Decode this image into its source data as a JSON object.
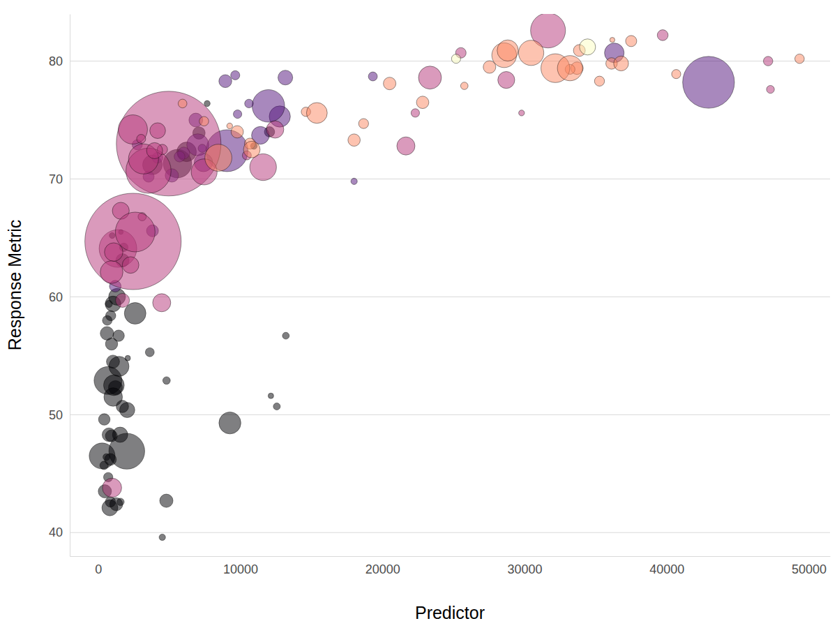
{
  "chart_data": {
    "type": "scatter",
    "marker": "bubble",
    "x_label": "Predictor",
    "y_label": "Response Metric",
    "xlim": [
      -2000,
      51500
    ],
    "ylim": [
      38,
      84
    ],
    "xticks": [
      0,
      10000,
      20000,
      30000,
      40000,
      50000
    ],
    "yticks": [
      40,
      50,
      60,
      70,
      80
    ],
    "grid": true,
    "series": [
      {
        "color": "#000004",
        "x": [
          6223,
          4797,
          1441,
          12570,
          1217,
          430,
          2042,
          706,
          1704,
          986,
          278,
          3633,
          1545,
          2082,
          5581,
          12154,
          641,
          691,
          13206,
          753,
          1328,
          943,
          579,
          1463,
          1569,
          415,
          12057,
          1045,
          759,
          1043,
          1803,
          10957,
          3820,
          824,
          4811,
          620,
          2014,
          7670,
          863,
          1598,
          1712,
          863,
          926,
          9270,
          2602,
          4513,
          1107,
          883,
          7093,
          1056,
          1271,
          470
        ],
        "values": [
          72.3,
          42.7,
          56.7,
          50.7,
          52.3,
          49.6,
          50.4,
          44.7,
          50.7,
          65.2,
          46.5,
          55.3,
          48.3,
          54.8,
          71.3,
          51.6,
          58.0,
          52.9,
          56.7,
          59.4,
          60.0,
          56.0,
          46.4,
          54.1,
          42.6,
          45.7,
          74.0,
          59.4,
          48.3,
          54.5,
          64.2,
          72.8,
          71.2,
          42.1,
          52.9,
          56.9,
          46.9,
          76.4,
          46.2,
          65.5,
          63.1,
          42.6,
          48.2,
          49.3,
          58.6,
          39.6,
          52.5,
          58.4,
          73.9,
          51.5,
          42.4,
          43.5
        ],
        "size": [
          33.3,
          12.4,
          8.1,
          1.6,
          14.3,
          8.4,
          17.7,
          4.4,
          10.2,
          0.7,
          64.6,
          3.8,
          18.0,
          0.5,
          80.3,
          0.55,
          4.9,
          76.5,
          1.45,
          1.7,
          22.9,
          9.9,
          1.5,
          35.6,
          2.0,
          3.2,
          6.0,
          19.2,
          13.3,
          12.0,
          3.3,
          1.25,
          33.8,
          20.0,
          2.1,
          12.9,
          135,
          0.8,
          8.9,
          0.2,
          12.3,
          6.1,
          9.1,
          44.0,
          42.3,
          1.1,
          38.1,
          5.7,
          10.3,
          29.2,
          11.7,
          12.3
        ]
      },
      {
        "color": "#51127C",
        "x": [
          12779,
          3822,
          9066,
          36319,
          13172,
          7007,
          9645,
          8948,
          6025,
          6873,
          5728,
          5186,
          1202,
          3548,
          7321,
          11978,
          2749,
          9809,
          4173,
          7409,
          19329,
          18009,
          42952,
          10611,
          11416
        ],
        "values": [
          75.3,
          65.6,
          72.4,
          80.7,
          78.6,
          72.9,
          78.8,
          78.3,
          72.2,
          75.0,
          71.9,
          70.3,
          60.9,
          70.2,
          72.6,
          76.2,
          72.9,
          75.5,
          71.8,
          71.4,
          78.7,
          69.8,
          78.2,
          76.4,
          73.7
        ],
        "size": [
          40.3,
          9.1,
          190,
          33.4,
          16.3,
          44.2,
          4.1,
          11.4,
          9.3,
          13.8,
          6.9,
          12.6,
          8.5,
          7.5,
          2.8,
          108.7,
          5.7,
          3.2,
          6.7,
          28.7,
          3.9,
          1.06,
          301,
          3.4,
          26.1
        ]
      },
      {
        "color": "#B63679",
        "x": [
          975,
          29796,
          1391,
          1714,
          4959,
          39725,
          2452,
          3541,
          11606,
          4471,
          25523,
          31656,
          4519,
          1593,
          23348,
          47307,
          10461,
          12452,
          3096,
          944,
          1091,
          22316,
          2606,
          3190,
          21655,
          47143,
          3970,
          4185,
          28718,
          7458,
          2442,
          3025,
          2281
        ],
        "values": [
          43.8,
          75.6,
          64.1,
          59.7,
          73.0,
          82.2,
          64.7,
          70.7,
          71.0,
          59.5,
          80.7,
          82.6,
          72.5,
          67.3,
          78.6,
          77.6,
          72.0,
          74.2,
          66.8,
          62.1,
          63.8,
          75.6,
          65.5,
          71.7,
          72.8,
          80.0,
          72.4,
          74.1,
          78.4,
          70.6,
          74.2,
          73.4,
          62.7
        ],
        "size": [
          31.9,
          0.7,
          150,
          14.1,
          1318,
          7.0,
          1110,
          223.5,
          69.5,
          27.5,
          6.4,
          127.5,
          6.05,
          23.3,
          49.0,
          2.5,
          3.9,
          24.8,
          2.9,
          47.8,
          28.9,
          3.2,
          169.3,
          91.1,
          27.6,
          4.55,
          20.4,
          19.3,
          23.2,
          65.1,
          85.3,
          4.0,
          22.2
        ]
      },
      {
        "color": "#FB8861",
        "x": [
          5937,
          36126,
          33693,
          7446,
          10681,
          14619,
          22833,
          35278,
          33207,
          30470,
          32170,
          27538,
          18009,
          36181,
          40676,
          28570,
          9254,
          36798,
          49357,
          15390,
          20510,
          10808,
          9787,
          18678,
          25768,
          28821,
          33860,
          37506,
          8458,
          33203
        ],
        "values": [
          76.4,
          79.8,
          79.4,
          74.9,
          73.0,
          75.7,
          76.5,
          78.3,
          79.3,
          80.7,
          79.4,
          79.5,
          73.3,
          81.8,
          78.9,
          80.5,
          74.5,
          79.8,
          80.2,
          75.6,
          78.1,
          72.5,
          74.0,
          74.7,
          77.9,
          80.9,
          80.9,
          81.7,
          71.8,
          79.4
        ],
        "size": [
          3.6,
          8.2,
          10.4,
          4.55,
          7.3,
          4.5,
          10.2,
          5.5,
          5.2,
          61.1,
          82.4,
          10.7,
          10.0,
          0.3,
          4.1,
          58.1,
          0.68,
          16.6,
          4.6,
          38.5,
          10.6,
          22.3,
          10.2,
          5.45,
          2.0,
          40.4,
          9.0,
          7.55,
          71.2,
          60.8
        ]
      },
      {
        "color": "#FCFDBF",
        "x": [
          34435,
          25185
        ],
        "values": [
          81.2,
          80.2
        ],
        "size": [
          20.4,
          4.1
        ]
      }
    ]
  }
}
